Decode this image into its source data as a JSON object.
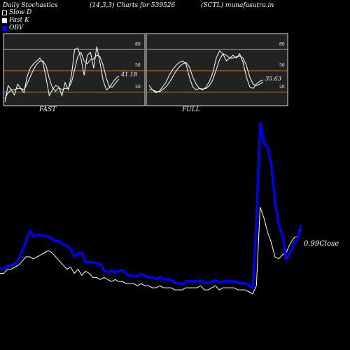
{
  "header": {
    "title": "Daily Stochastics",
    "params": "(14,3,3) Charts for 539526",
    "symbol": "(SCTL) munafasutra.in"
  },
  "legend": [
    {
      "label": "Slow  D",
      "color": "#ffffff",
      "style": "outline"
    },
    {
      "label": "Fast K",
      "color": "#ffffff",
      "style": "filled"
    },
    {
      "label": "OBV",
      "color": "#0000ee",
      "style": "filled"
    }
  ],
  "panels": {
    "fast_label": "FAST",
    "full_label": "FULL",
    "fast_value": "41.18",
    "full_value": "35.63",
    "levels": [
      "80",
      "50",
      "20"
    ]
  },
  "close_label": "0.99Close",
  "colors": {
    "background": "#000000",
    "panel_bg": "#222222",
    "level_line": "#c8822a",
    "line": "#ffffff",
    "obv": "#0000ee"
  },
  "chart_data": [
    {
      "type": "line",
      "name_ref": "fast",
      "ylim": [
        0,
        100
      ],
      "levels": [
        80,
        50,
        20
      ],
      "series": [
        {
          "name": "Fast K",
          "values": [
            5,
            28,
            22,
            15,
            30,
            24,
            18,
            40,
            52,
            58,
            62,
            66,
            60,
            38,
            14,
            22,
            28,
            26,
            14,
            32,
            22,
            42,
            78,
            80,
            66,
            42,
            70,
            74,
            52,
            82,
            60,
            35,
            22,
            25,
            32,
            38,
            41
          ]
        },
        {
          "name": "Slow  D",
          "values": [
            10,
            18,
            22,
            22,
            24,
            24,
            22,
            30,
            40,
            50,
            57,
            62,
            62,
            55,
            38,
            25,
            20,
            25,
            22,
            24,
            24,
            32,
            50,
            68,
            74,
            62,
            58,
            64,
            65,
            70,
            68,
            56,
            38,
            26,
            26,
            32,
            37
          ]
        }
      ]
    },
    {
      "type": "line",
      "name_ref": "full",
      "ylim": [
        0,
        100
      ],
      "levels": [
        80,
        50,
        20
      ],
      "series": [
        {
          "name": "Fast K",
          "values": [
            28,
            22,
            18,
            20,
            26,
            32,
            42,
            50,
            56,
            60,
            62,
            58,
            40,
            26,
            22,
            24,
            22,
            26,
            34,
            46,
            66,
            76,
            72,
            62,
            66,
            70,
            66,
            72,
            60,
            40,
            26,
            24,
            30,
            34,
            36
          ]
        },
        {
          "name": "Slow  D",
          "values": [
            22,
            22,
            20,
            19,
            22,
            26,
            32,
            40,
            48,
            54,
            58,
            60,
            54,
            40,
            30,
            24,
            23,
            24,
            28,
            36,
            50,
            64,
            72,
            70,
            66,
            66,
            68,
            69,
            66,
            56,
            40,
            30,
            28,
            30,
            33
          ]
        }
      ]
    },
    {
      "type": "line",
      "name_ref": "main",
      "series": [
        {
          "name": "OBV",
          "values": [
            14.8,
            14.8,
            16.6,
            16.6,
            17.7,
            20.2,
            25.5,
            31.2,
            37.0,
            33.8,
            34.6,
            34.6,
            33.8,
            33.8,
            32.4,
            30.8,
            30.8,
            28.9,
            28.1,
            26.5,
            21.7,
            24.0,
            24.0,
            18.6,
            18.6,
            18.6,
            17.7,
            17.7,
            13.8,
            12.6,
            13.8,
            12.6,
            13.8,
            13.8,
            11.8,
            10.6,
            10.6,
            10.6,
            11.8,
            10.6,
            9.8,
            9.8,
            8.9,
            9.8,
            8.6,
            8.6,
            8.6,
            6.4,
            6.4,
            5.6,
            7.4,
            7.4,
            7.4,
            7.4,
            8.1,
            6.4,
            6.4,
            7.4,
            8.1,
            6.4,
            7.4,
            7.4,
            7.4,
            7.4,
            6.4,
            6.4,
            6.4,
            4.8,
            3.8,
            42.3,
            100.0,
            88.4,
            85.7,
            75.7,
            54.1,
            40.5,
            34.5,
            20.4,
            23.6,
            29.6,
            32.3,
            40.5
          ]
        },
        {
          "name": "Close",
          "values": [
            0.78,
            0.78,
            0.8,
            0.8,
            0.81,
            0.82,
            0.84,
            0.86,
            0.86,
            0.85,
            0.86,
            0.87,
            0.88,
            0.89,
            0.88,
            0.86,
            0.84,
            0.82,
            0.8,
            0.81,
            0.78,
            0.8,
            0.77,
            0.79,
            0.78,
            0.76,
            0.76,
            0.75,
            0.76,
            0.75,
            0.74,
            0.75,
            0.74,
            0.74,
            0.73,
            0.73,
            0.73,
            0.72,
            0.73,
            0.72,
            0.72,
            0.71,
            0.71,
            0.72,
            0.71,
            0.71,
            0.71,
            0.7,
            0.7,
            0.7,
            0.71,
            0.71,
            0.71,
            0.71,
            0.72,
            0.7,
            0.7,
            0.71,
            0.72,
            0.7,
            0.71,
            0.71,
            0.71,
            0.71,
            0.7,
            0.7,
            0.7,
            0.69,
            0.68,
            0.72,
            1.1,
            1.05,
            0.98,
            0.93,
            0.86,
            0.85,
            0.87,
            0.88,
            0.92,
            0.95,
            0.96,
            0.99
          ]
        }
      ]
    }
  ]
}
